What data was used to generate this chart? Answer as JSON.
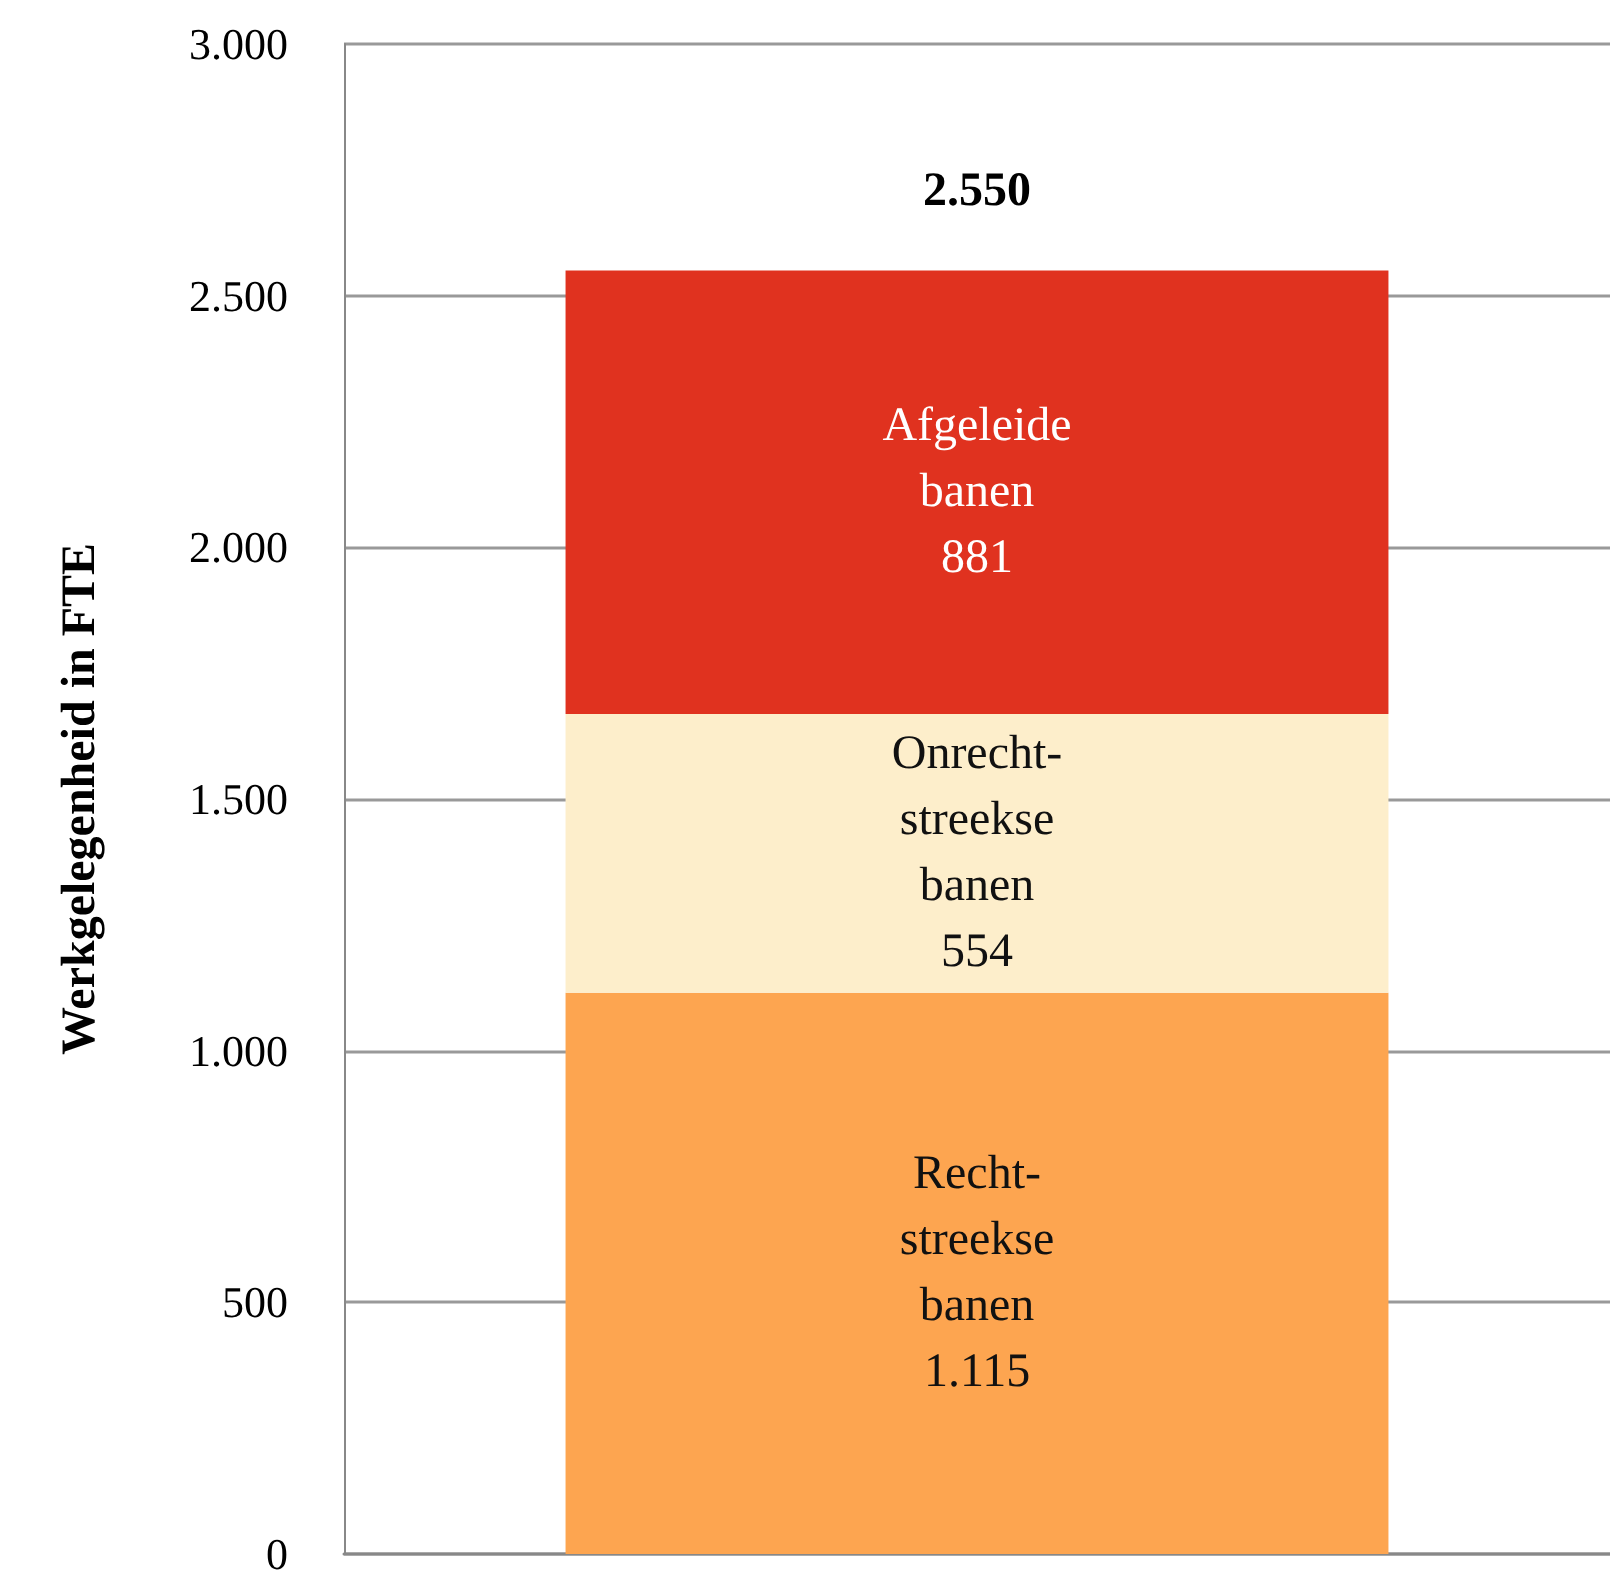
{
  "chart_data": {
    "type": "bar",
    "ylabel": "Werkgelegenheid in FTE",
    "categories": [
      null
    ],
    "stacked": true,
    "series": [
      {
        "name": "Recht- streekse banen",
        "color": "#fda550",
        "values": [
          1115
        ],
        "value_labels": [
          "1.115"
        ]
      },
      {
        "name": "Onrecht- streekse banen",
        "color": "#fdeecb",
        "values": [
          554
        ],
        "value_labels": [
          "554"
        ]
      },
      {
        "name": "Afgeleide banen",
        "color": "#e0321f",
        "values": [
          881
        ],
        "value_labels": [
          "881"
        ]
      }
    ],
    "totals": [
      "2.550"
    ],
    "ylim": [
      0,
      3000
    ],
    "yticks": [
      0,
      500,
      {
        "value": 1000,
        "label": "1.000"
      },
      {
        "value": 1500,
        "label": "1.500"
      },
      {
        "value": 2000,
        "label": "2.000"
      },
      {
        "value": 2500,
        "label": "2.500"
      },
      {
        "value": 3000,
        "label": "3.000"
      }
    ],
    "grid": "y",
    "legend": false
  }
}
